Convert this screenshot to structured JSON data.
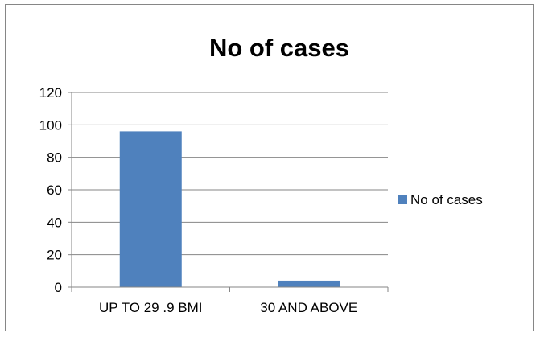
{
  "chart_data": {
    "type": "bar",
    "title": "No of cases",
    "xlabel": "",
    "ylabel": "",
    "categories": [
      "UP TO 29 .9 BMI",
      "30 AND ABOVE"
    ],
    "series": [
      {
        "name": "No of cases",
        "values": [
          96,
          4
        ],
        "color": "#4F81BD"
      }
    ],
    "ylim": [
      0,
      120
    ],
    "yticks": [
      0,
      20,
      40,
      60,
      80,
      100,
      120
    ],
    "grid": true,
    "legend": "right"
  }
}
